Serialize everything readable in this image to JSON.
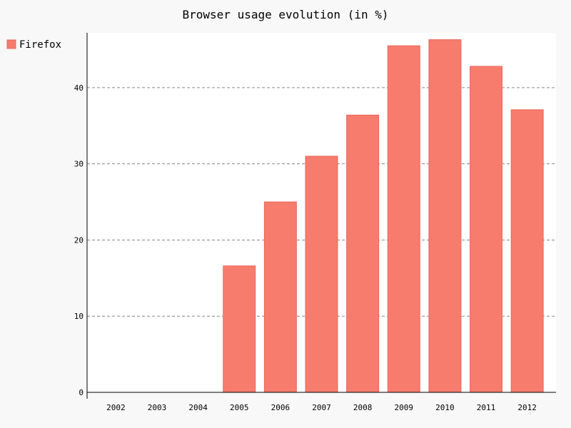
{
  "chart_data": {
    "type": "bar",
    "title": "Browser usage evolution (in %)",
    "xlabel": "",
    "ylabel": "",
    "categories": [
      "2002",
      "2003",
      "2004",
      "2005",
      "2006",
      "2007",
      "2008",
      "2009",
      "2010",
      "2011",
      "2012"
    ],
    "series": [
      {
        "name": "Firefox",
        "values": [
          0,
          0,
          0,
          16.6,
          25,
          31,
          36.4,
          45.5,
          46.3,
          42.8,
          37.1
        ]
      }
    ],
    "ylim": [
      0,
      47.2
    ],
    "yticks": [
      0,
      10,
      20,
      30,
      40
    ],
    "grid": "horizontal dashed",
    "legend_position": "top-left",
    "colors": {
      "bar_fill": "#f77c6e",
      "bar_stroke": "#e8675a",
      "grid": "#888888",
      "axis": "#000000",
      "plot_background": "#ffffff",
      "page_background": "#f8f8f8"
    }
  }
}
